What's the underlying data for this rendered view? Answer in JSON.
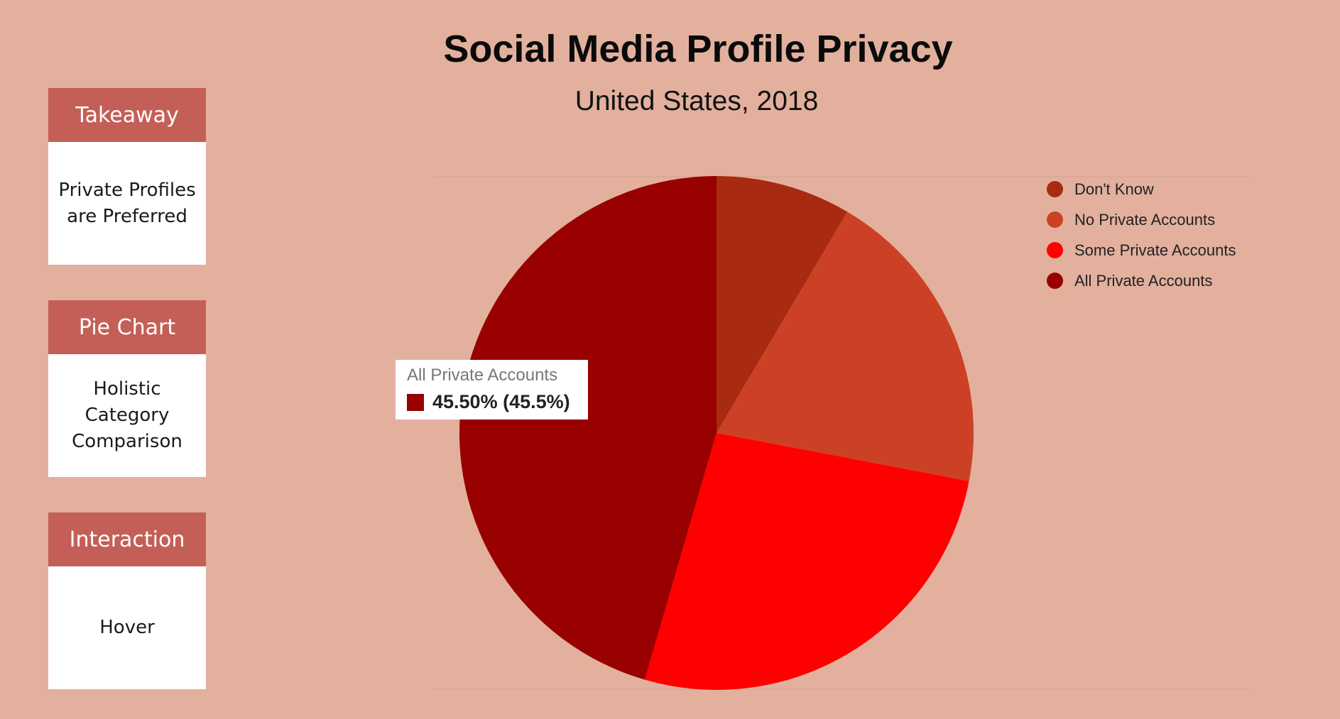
{
  "sidebar": {
    "cards": [
      {
        "header": "Takeaway",
        "body": "Private Profiles are Preferred"
      },
      {
        "header": "Pie Chart",
        "body": "Holistic Category Comparison"
      },
      {
        "header": "Interaction",
        "body": "Hover"
      }
    ],
    "header_color": "#c45f57"
  },
  "tooltip": {
    "title": "All Private Accounts",
    "value": "45.50% (45.5%)",
    "color": "#990000"
  },
  "chart_data": {
    "type": "pie",
    "title": "Social Media Profile Privacy",
    "subtitle": "United States, 2018",
    "categories": [
      "Don't Know",
      "No Private Accounts",
      "Some Private Accounts",
      "All Private Accounts"
    ],
    "values": [
      8.5,
      19.5,
      26.5,
      45.5
    ],
    "colors": [
      "#a82a11",
      "#cc4125",
      "#ff0000",
      "#990000"
    ],
    "start_angle": "top",
    "direction": "clockwise",
    "legend": "right",
    "highlighted": "All Private Accounts"
  }
}
